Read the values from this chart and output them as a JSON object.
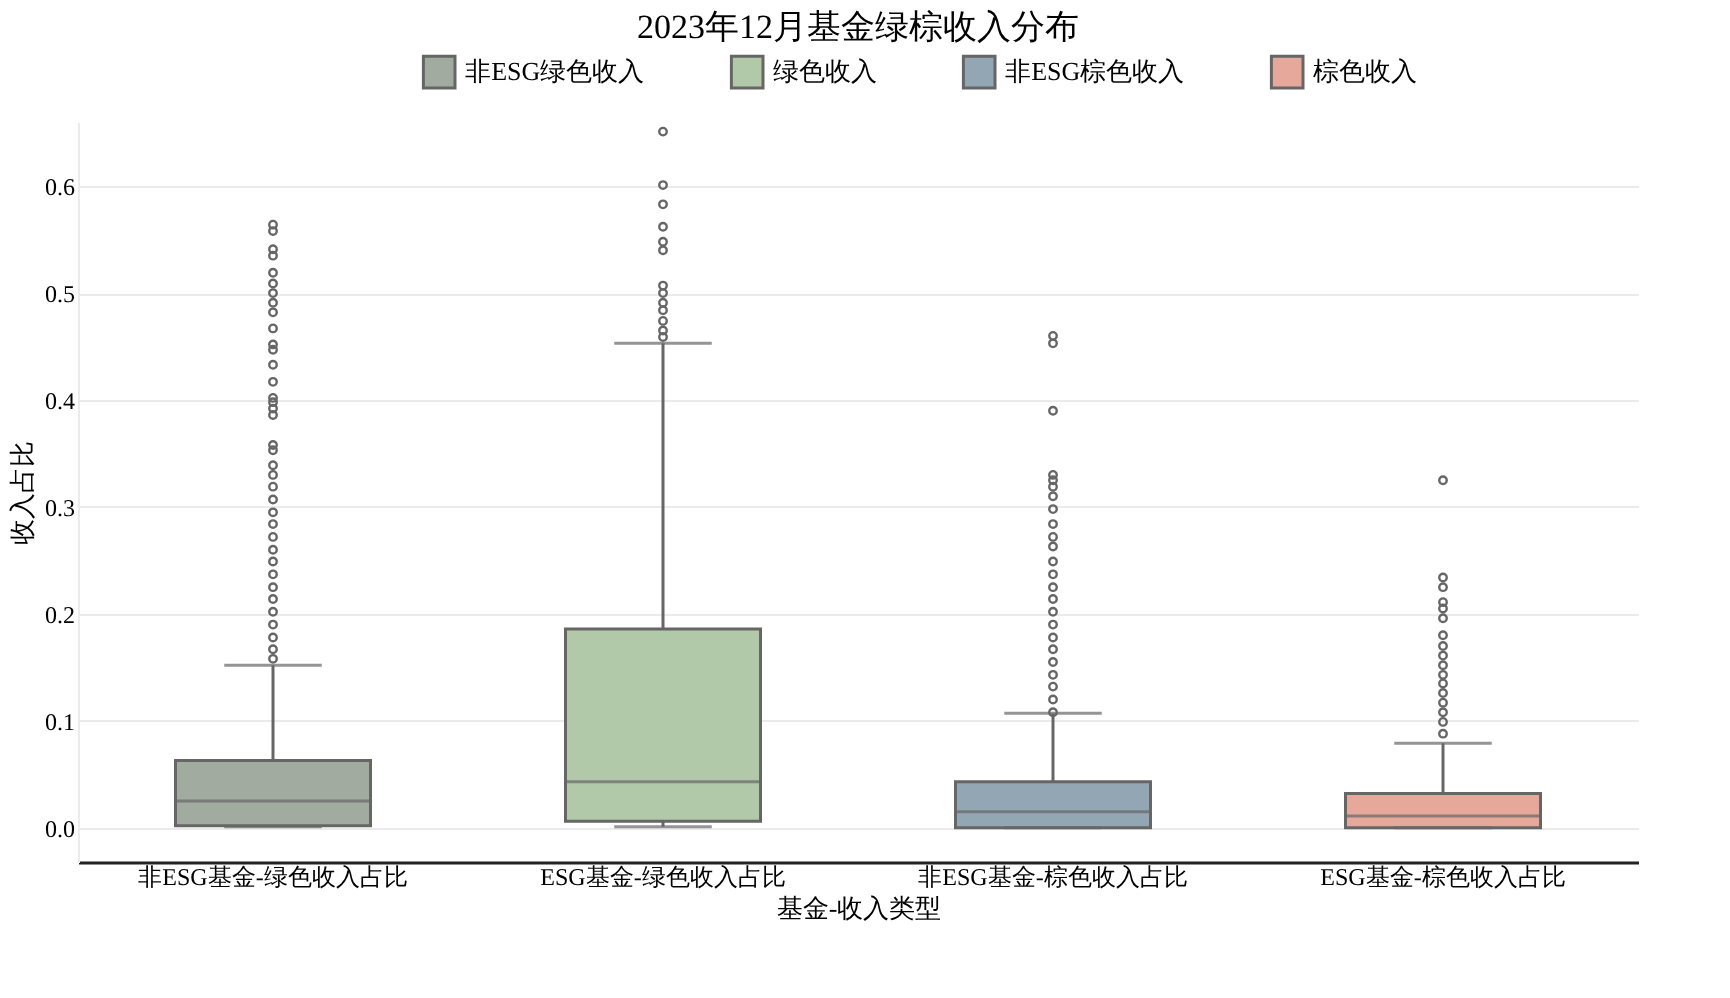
{
  "chart_data": {
    "type": "box",
    "title": "2023年12月基金绿棕收入分布",
    "xlabel": "基金-收入类型",
    "ylabel": "收入占比",
    "categories": [
      "非ESG基金-绿色收入占比",
      "ESG基金-绿色收入占比",
      "非ESG基金-棕色收入占比",
      "ESG基金-棕色收入占比"
    ],
    "series": [
      {
        "name": "非ESG绿色收入",
        "color": "#a1aba0",
        "boxes": [
          {
            "low": 0.001,
            "q1": 0.002,
            "median": 0.025,
            "q3": 0.063,
            "high": 0.152,
            "outliers": [
              0.564,
              0.558,
              0.541,
              0.535,
              0.519,
              0.509,
              0.5,
              0.491,
              0.482,
              0.467,
              0.452,
              0.447,
              0.433,
              0.417,
              0.402,
              0.398,
              0.392,
              0.386,
              0.358,
              0.353,
              0.339,
              0.33,
              0.319,
              0.307,
              0.295,
              0.284,
              0.272,
              0.26,
              0.249,
              0.237,
              0.225,
              0.214,
              0.202,
              0.19,
              0.178,
              0.167,
              0.158
            ]
          },
          null,
          null,
          null
        ]
      },
      {
        "name": "绿色收入",
        "color": "#b1c9a9",
        "boxes": [
          null,
          {
            "low": 0.001,
            "q1": 0.006,
            "median": 0.043,
            "q3": 0.186,
            "high": 0.453,
            "outliers": [
              0.651,
              0.601,
              0.583,
              0.562,
              0.548,
              0.54,
              0.507,
              0.5,
              0.491,
              0.484,
              0.474,
              0.465,
              0.459
            ]
          },
          null,
          null
        ]
      },
      {
        "name": "非ESG棕色收入",
        "color": "#93a6b4",
        "boxes": [
          null,
          null,
          {
            "low": 0.0,
            "q1": 0.0,
            "median": 0.015,
            "q3": 0.043,
            "high": 0.107,
            "outliers": [
              0.46,
              0.453,
              0.39,
              0.33,
              0.325,
              0.319,
              0.31,
              0.298,
              0.284,
              0.272,
              0.263,
              0.249,
              0.237,
              0.225,
              0.214,
              0.202,
              0.19,
              0.178,
              0.167,
              0.155,
              0.143,
              0.132,
              0.12,
              0.108
            ]
          },
          null
        ]
      },
      {
        "name": "棕色收入",
        "color": "#e5a89b",
        "boxes": [
          null,
          null,
          null,
          {
            "low": 0.0,
            "q1": 0.0,
            "median": 0.011,
            "q3": 0.032,
            "high": 0.079,
            "outliers": [
              0.325,
              0.234,
              0.225,
              0.211,
              0.205,
              0.196,
              0.18,
              0.17,
              0.161,
              0.152,
              0.143,
              0.135,
              0.126,
              0.117,
              0.108,
              0.099,
              0.088
            ]
          }
        ]
      }
    ],
    "ylim": [
      -0.032,
      0.66
    ],
    "yticks": [
      {
        "value": 0,
        "label": "0.0"
      },
      0.1,
      0.2,
      0.3,
      0.4,
      0.5,
      0.6
    ],
    "grid": "y",
    "legend": "top"
  }
}
